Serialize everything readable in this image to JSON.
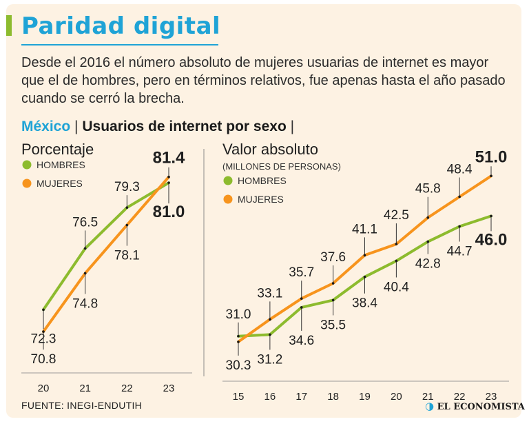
{
  "header": {
    "title": "Paridad digital",
    "subtitle": "Desde el 2016 el número absoluto de mujeres usuarias de internet es mayor que el de hombres, pero en términos relativos, fue apenas hasta el año pasado cuando se cerró la brecha.",
    "country": "México",
    "separator": "|",
    "chart_heading": "Usuarios de internet por sexo"
  },
  "colors": {
    "accent": "#1fa3d6",
    "hombres": "#8dbb2e",
    "mujeres": "#f7941d",
    "background": "#fdf2e3"
  },
  "footer": {
    "source": "FUENTE: INEGI-ENDUTIH",
    "logo_text": "EL ECONOMISTA",
    "logo_icon": "economista-e-icon"
  },
  "chart_data": [
    {
      "type": "line",
      "title": "Porcentaje",
      "subtitle": "",
      "categories": [
        "20",
        "21",
        "22",
        "23"
      ],
      "ylim": [
        70,
        82
      ],
      "series": [
        {
          "name": "HOMBRES",
          "color": "#8dbb2e",
          "values": [
            72.3,
            76.5,
            79.3,
            81.0
          ],
          "labels": [
            "72.3",
            "76.5",
            "79.3",
            "81.0"
          ]
        },
        {
          "name": "MUJERES",
          "color": "#f7941d",
          "values": [
            70.8,
            74.8,
            78.1,
            81.4
          ],
          "labels": [
            "70.8",
            "74.8",
            "78.1",
            "81.4"
          ]
        }
      ]
    },
    {
      "type": "line",
      "title": "Valor absoluto",
      "subtitle": "(MILLONES DE PERSONAS)",
      "categories": [
        "15",
        "16",
        "17",
        "18",
        "19",
        "20",
        "21",
        "22",
        "23"
      ],
      "ylim": [
        29,
        53
      ],
      "series": [
        {
          "name": "HOMBRES",
          "color": "#8dbb2e",
          "values": [
            31.0,
            31.2,
            34.6,
            35.5,
            38.4,
            40.4,
            42.8,
            44.7,
            46.0
          ],
          "labels": [
            "31.0",
            "31.2",
            "34.6",
            "35.5",
            "38.4",
            "40.4",
            "42.8",
            "44.7",
            "46.0"
          ]
        },
        {
          "name": "MUJERES",
          "color": "#f7941d",
          "values": [
            30.3,
            33.1,
            35.7,
            37.6,
            41.1,
            42.5,
            45.8,
            48.4,
            51.0
          ],
          "labels": [
            "30.3",
            "33.1",
            "35.7",
            "37.6",
            "41.1",
            "42.5",
            "45.8",
            "48.4",
            "51.0"
          ]
        }
      ]
    }
  ]
}
